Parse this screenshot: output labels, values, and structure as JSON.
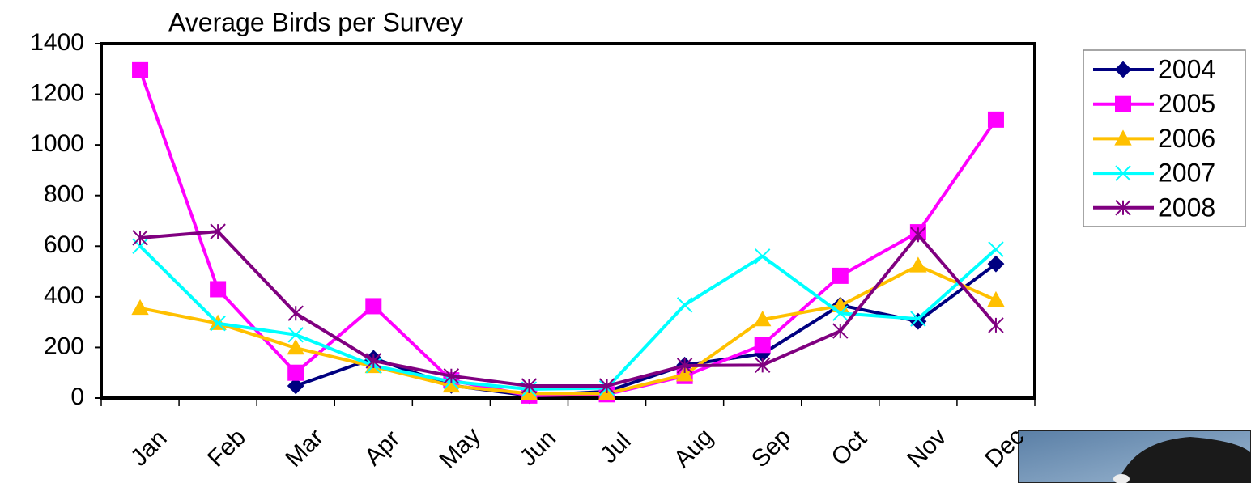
{
  "chart_data": {
    "type": "line",
    "title": "Average Birds per Survey",
    "categories": [
      "Jan",
      "Feb",
      "Mar",
      "Apr",
      "May",
      "Jun",
      "Jul",
      "Aug",
      "Sep",
      "Oct",
      "Nov",
      "Dec"
    ],
    "series": [
      {
        "name": "2004",
        "color": "#000080",
        "marker": "diamond",
        "values": [
          null,
          null,
          48,
          157,
          50,
          10,
          26,
          130,
          175,
          367,
          303,
          530
        ]
      },
      {
        "name": "2005",
        "color": "#ff00ff",
        "marker": "square",
        "values": [
          1295,
          430,
          100,
          363,
          70,
          10,
          15,
          87,
          210,
          483,
          655,
          1100
        ]
      },
      {
        "name": "2006",
        "color": "#ffc000",
        "marker": "triangle",
        "values": [
          355,
          295,
          198,
          125,
          48,
          18,
          18,
          92,
          310,
          365,
          523,
          387
        ]
      },
      {
        "name": "2007",
        "color": "#00ffff",
        "marker": "x",
        "values": [
          600,
          295,
          250,
          128,
          65,
          35,
          40,
          368,
          560,
          335,
          313,
          588
        ]
      },
      {
        "name": "2008",
        "color": "#800080",
        "marker": "star",
        "values": [
          633,
          658,
          335,
          147,
          87,
          48,
          48,
          128,
          130,
          265,
          645,
          288
        ]
      }
    ],
    "ylim": [
      0,
      1400
    ],
    "yticks": [
      0,
      200,
      400,
      600,
      800,
      1000,
      1200,
      1400
    ],
    "grid": false,
    "legend": "right"
  }
}
